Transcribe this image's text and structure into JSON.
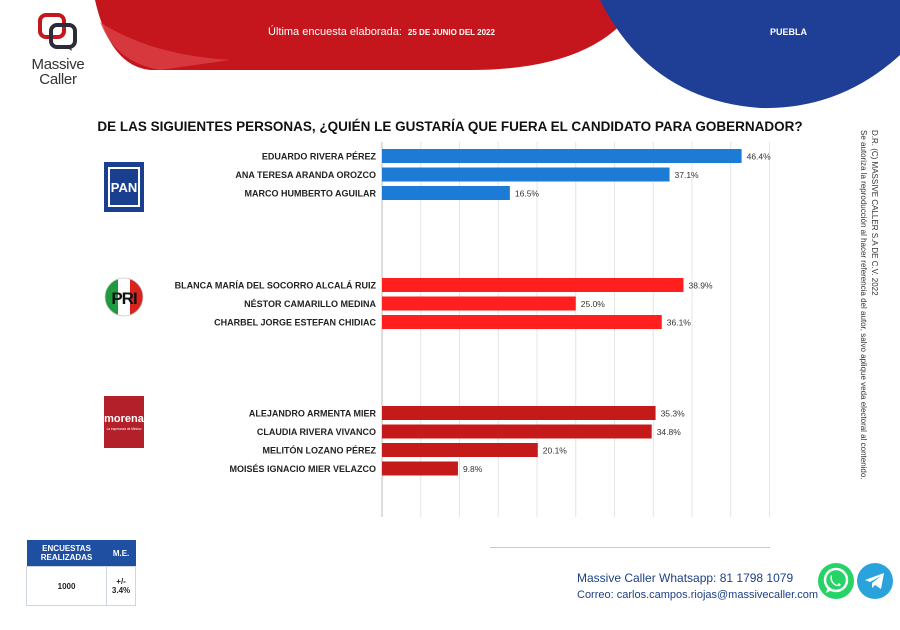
{
  "brand": {
    "name_line1": "Massive",
    "name_line2": "Caller"
  },
  "header": {
    "survey_label": "Última encuesta elaborada:",
    "survey_date": "25 DE JUNIO DEL 2022",
    "state": "PUEBLA"
  },
  "colors": {
    "header_red": "#c4161c",
    "header_blue": "#1f3f96",
    "pan_bar": "#1c7cd5",
    "pri_bar": "#ff1f1f",
    "morena_bar": "#c41a1a"
  },
  "parties": [
    {
      "icon": "pan-logo-icon",
      "label": "PAN"
    },
    {
      "icon": "pri-logo-icon",
      "label": "PRI"
    },
    {
      "icon": "morena-logo-icon",
      "label": "morena",
      "sublabel": "La esperanza de México"
    }
  ],
  "chart_data": {
    "type": "bar",
    "orientation": "horizontal",
    "title": "DE LAS SIGUIENTES PERSONAS, ¿QUIÉN LE GUSTARÍA QUE FUERA EL CANDIDATO PARA GOBERNADOR?",
    "xlim": [
      0,
      50
    ],
    "grid": true,
    "groups": [
      {
        "party": "PAN",
        "color": "#1c7cd5",
        "items": [
          {
            "name": "EDUARDO RIVERA PÉREZ",
            "value": 46.4,
            "label": "46.4%"
          },
          {
            "name": "ANA TERESA ARANDA OROZCO",
            "value": 37.1,
            "label": "37.1%"
          },
          {
            "name": "MARCO HUMBERTO AGUILAR",
            "value": 16.5,
            "label": "16.5%"
          }
        ]
      },
      {
        "party": "PRI",
        "color": "#ff1f1f",
        "items": [
          {
            "name": "BLANCA MARÍA DEL SOCORRO ALCALÁ RUIZ",
            "value": 38.9,
            "label": "38.9%"
          },
          {
            "name": "NÉSTOR CAMARILLO MEDINA",
            "value": 25.0,
            "label": "25.0%"
          },
          {
            "name": "CHARBEL JORGE ESTEFAN CHIDIAC",
            "value": 36.1,
            "label": "36.1%"
          }
        ]
      },
      {
        "party": "MORENA",
        "color": "#c41a1a",
        "items": [
          {
            "name": "ALEJANDRO ARMENTA MIER",
            "value": 35.3,
            "label": "35.3%"
          },
          {
            "name": "CLAUDIA RIVERA VIVANCO",
            "value": 34.8,
            "label": "34.8%"
          },
          {
            "name": "MELITÓN LOZANO PÉREZ",
            "value": 20.1,
            "label": "20.1%"
          },
          {
            "name": "MOISÉS IGNACIO MIER VELAZCO",
            "value": 9.8,
            "label": "9.8%"
          }
        ]
      }
    ]
  },
  "side_note": {
    "line1": "D.R. (C) MASSIVE CALLER S.A DE C.V. 2022",
    "line2": "Se autoriza la reproducción al hacer referencia del autor, salvo aplique veda electoral al contenido."
  },
  "stats": {
    "h1": "ENCUESTAS REALIZADAS",
    "h2": "M.E.",
    "v1": "1000",
    "v2": "+/- 3.4%"
  },
  "contact": {
    "whatsapp": "Massive Caller Whatsapp: 81 1798 1079",
    "email_label": "Correo:",
    "email": "carlos.campos.riojas@massivecaller.com"
  },
  "icons": [
    "whatsapp-icon",
    "telegram-icon"
  ]
}
